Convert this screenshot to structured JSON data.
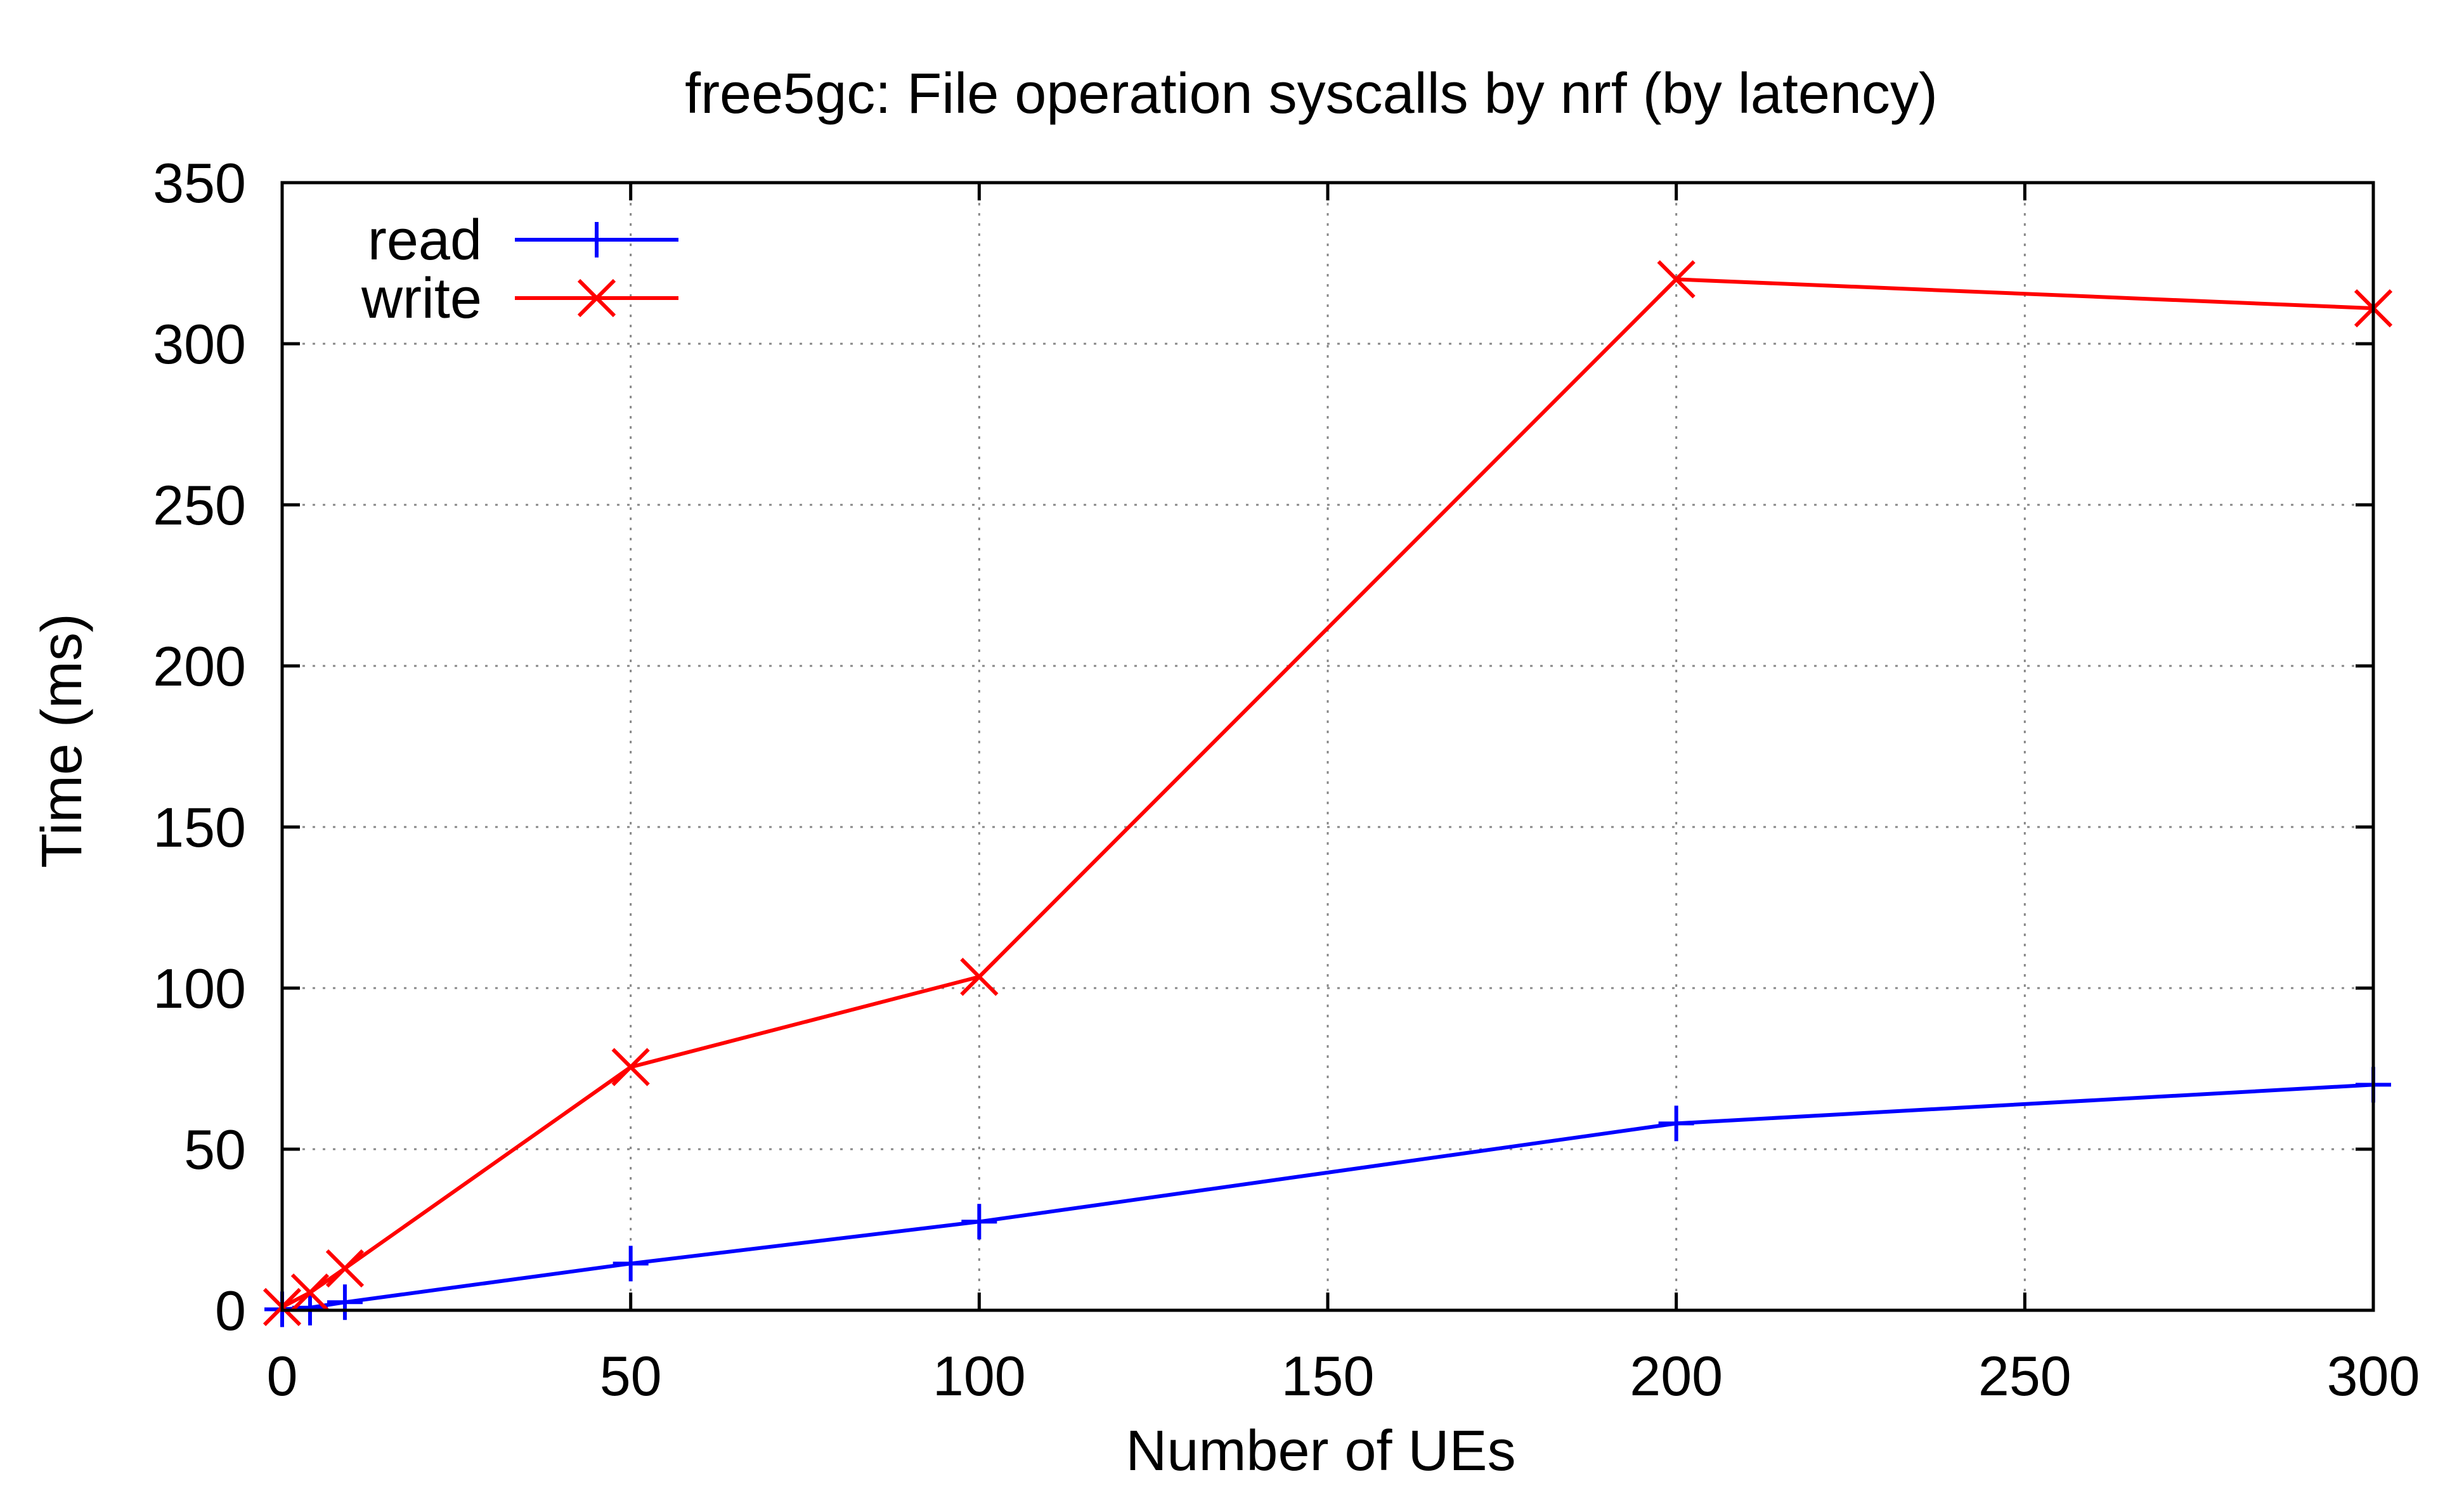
{
  "chart_data": {
    "type": "line",
    "title": "free5gc: File operation syscalls by nrf (by latency)",
    "xlabel": "Number of UEs",
    "ylabel": "Time (ms)",
    "xlim": [
      0,
      300
    ],
    "ylim": [
      0,
      350
    ],
    "xticks": [
      0,
      50,
      100,
      150,
      200,
      250,
      300
    ],
    "yticks": [
      0,
      50,
      100,
      150,
      200,
      250,
      300,
      350
    ],
    "grid": true,
    "legend_position": "top-left",
    "series": [
      {
        "name": "read",
        "color": "#0000ff",
        "marker": "plus",
        "x": [
          0,
          4,
          9,
          50,
          100,
          200,
          300
        ],
        "y": [
          0.3,
          0.8,
          2.5,
          14.5,
          27.5,
          58,
          70
        ]
      },
      {
        "name": "write",
        "color": "#ff0000",
        "marker": "cross",
        "x": [
          0,
          4,
          9,
          50,
          100,
          200,
          300
        ],
        "y": [
          1,
          5.5,
          13,
          75.5,
          103.5,
          320,
          311
        ]
      }
    ]
  }
}
